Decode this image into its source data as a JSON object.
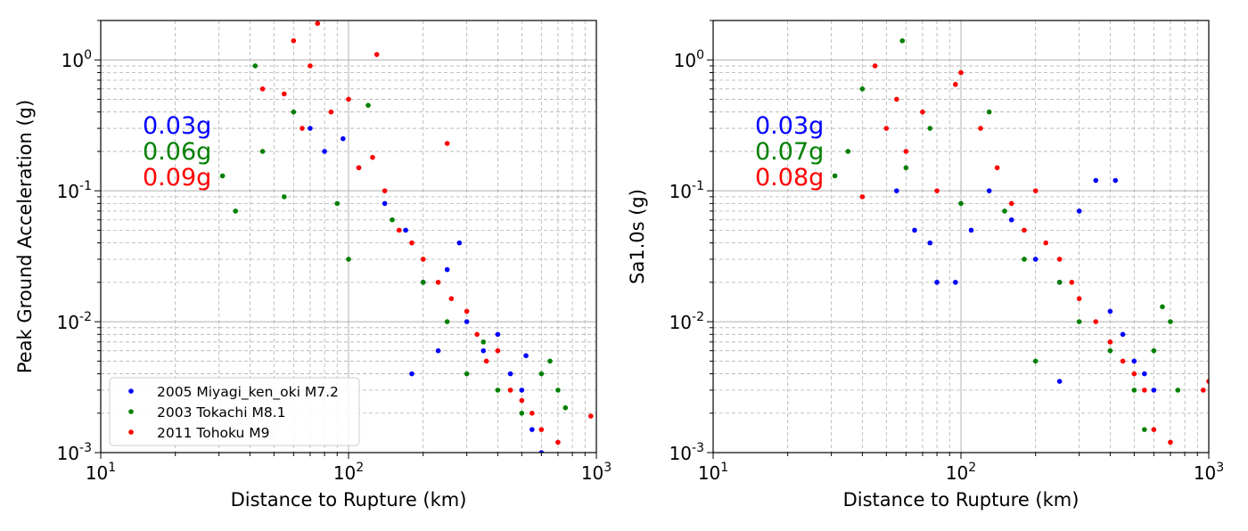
{
  "chart_data": [
    {
      "type": "scatter",
      "xlabel": "Distance to Rupture (km)",
      "ylabel": "Peak Ground Acceleration (g)",
      "xscale": "log",
      "yscale": "log",
      "xlim": [
        10,
        1000
      ],
      "ylim": [
        0.001,
        2
      ],
      "x_ticks": [
        "10^1",
        "10^2",
        "10^3"
      ],
      "y_ticks": [
        "10^-3",
        "10^-2",
        "10^-1",
        "10^0"
      ],
      "grid": true,
      "legend_placement": "lower-left",
      "annotations": [
        {
          "text": "0.03g",
          "color": "#0000ff"
        },
        {
          "text": "0.06g",
          "color": "#008000"
        },
        {
          "text": "0.09g",
          "color": "#ff0000"
        }
      ],
      "series": [
        {
          "name": "2005 Miyagi_ken_oki M7.2",
          "color": "#0000ff",
          "points": [
            [
              70,
              0.3
            ],
            [
              80,
              0.2
            ],
            [
              95,
              0.25
            ],
            [
              110,
              0.15
            ],
            [
              140,
              0.08
            ],
            [
              170,
              0.05
            ],
            [
              200,
              0.02
            ],
            [
              250,
              0.025
            ],
            [
              280,
              0.04
            ],
            [
              300,
              0.01
            ],
            [
              350,
              0.006
            ],
            [
              400,
              0.008
            ],
            [
              450,
              0.004
            ],
            [
              500,
              0.003
            ],
            [
              520,
              0.0055
            ],
            [
              550,
              0.0015
            ],
            [
              600,
              0.001
            ],
            [
              180,
              0.004
            ],
            [
              230,
              0.006
            ]
          ]
        },
        {
          "name": "2003 Tokachi M8.1",
          "color": "#008000",
          "points": [
            [
              31,
              0.13
            ],
            [
              35,
              0.07
            ],
            [
              42,
              0.9
            ],
            [
              45,
              0.2
            ],
            [
              55,
              0.09
            ],
            [
              60,
              0.4
            ],
            [
              90,
              0.08
            ],
            [
              120,
              0.45
            ],
            [
              150,
              0.06
            ],
            [
              200,
              0.02
            ],
            [
              250,
              0.01
            ],
            [
              300,
              0.004
            ],
            [
              350,
              0.007
            ],
            [
              400,
              0.003
            ],
            [
              500,
              0.002
            ],
            [
              600,
              0.004
            ],
            [
              650,
              0.005
            ],
            [
              700,
              0.003
            ],
            [
              750,
              0.0022
            ],
            [
              100,
              0.03
            ]
          ]
        },
        {
          "name": "2011 Tohoku M9",
          "color": "#ff0000",
          "points": [
            [
              45,
              0.6
            ],
            [
              55,
              0.55
            ],
            [
              60,
              1.4
            ],
            [
              70,
              0.9
            ],
            [
              75,
              1.9
            ],
            [
              85,
              0.4
            ],
            [
              100,
              0.5
            ],
            [
              110,
              0.15
            ],
            [
              125,
              0.18
            ],
            [
              140,
              0.1
            ],
            [
              160,
              0.05
            ],
            [
              180,
              0.04
            ],
            [
              200,
              0.03
            ],
            [
              230,
              0.02
            ],
            [
              260,
              0.015
            ],
            [
              300,
              0.012
            ],
            [
              330,
              0.008
            ],
            [
              360,
              0.005
            ],
            [
              400,
              0.006
            ],
            [
              450,
              0.003
            ],
            [
              500,
              0.0025
            ],
            [
              550,
              0.002
            ],
            [
              600,
              0.0015
            ],
            [
              700,
              0.0012
            ],
            [
              950,
              0.0019
            ],
            [
              130,
              1.1
            ],
            [
              65,
              0.3
            ],
            [
              250,
              0.23
            ]
          ]
        }
      ]
    },
    {
      "type": "scatter",
      "xlabel": "Distance to Rupture (km)",
      "ylabel": "Sa1.0s (g)",
      "xscale": "log",
      "yscale": "log",
      "xlim": [
        10,
        1000
      ],
      "ylim": [
        0.001,
        2
      ],
      "x_ticks": [
        "10^1",
        "10^2",
        "10^3"
      ],
      "y_ticks": [
        "10^-3",
        "10^-2",
        "10^-1",
        "10^0"
      ],
      "grid": true,
      "annotations": [
        {
          "text": "0.03g",
          "color": "#0000ff"
        },
        {
          "text": "0.07g",
          "color": "#008000"
        },
        {
          "text": "0.08g",
          "color": "#ff0000"
        }
      ],
      "series": [
        {
          "color": "#0000ff",
          "points": [
            [
              55,
              0.1
            ],
            [
              65,
              0.05
            ],
            [
              75,
              0.04
            ],
            [
              80,
              0.02
            ],
            [
              95,
              0.02
            ],
            [
              110,
              0.05
            ],
            [
              130,
              0.1
            ],
            [
              160,
              0.06
            ],
            [
              200,
              0.03
            ],
            [
              250,
              0.02
            ],
            [
              300,
              0.07
            ],
            [
              350,
              0.12
            ],
            [
              400,
              0.012
            ],
            [
              420,
              0.12
            ],
            [
              450,
              0.008
            ],
            [
              500,
              0.005
            ],
            [
              550,
              0.004
            ],
            [
              600,
              0.003
            ],
            [
              250,
              0.0035
            ]
          ]
        },
        {
          "color": "#008000",
          "points": [
            [
              31,
              0.13
            ],
            [
              35,
              0.2
            ],
            [
              40,
              0.6
            ],
            [
              58,
              1.4
            ],
            [
              60,
              0.15
            ],
            [
              75,
              0.3
            ],
            [
              100,
              0.08
            ],
            [
              130,
              0.4
            ],
            [
              150,
              0.07
            ],
            [
              180,
              0.03
            ],
            [
              200,
              0.005
            ],
            [
              250,
              0.02
            ],
            [
              300,
              0.01
            ],
            [
              400,
              0.006
            ],
            [
              500,
              0.003
            ],
            [
              550,
              0.0015
            ],
            [
              650,
              0.013
            ],
            [
              700,
              0.01
            ],
            [
              750,
              0.003
            ],
            [
              600,
              0.006
            ]
          ]
        },
        {
          "color": "#ff0000",
          "points": [
            [
              40,
              0.09
            ],
            [
              45,
              0.9
            ],
            [
              50,
              0.3
            ],
            [
              55,
              0.5
            ],
            [
              60,
              0.2
            ],
            [
              70,
              0.4
            ],
            [
              80,
              0.1
            ],
            [
              95,
              0.65
            ],
            [
              100,
              0.8
            ],
            [
              120,
              0.3
            ],
            [
              140,
              0.15
            ],
            [
              160,
              0.08
            ],
            [
              180,
              0.05
            ],
            [
              200,
              0.1
            ],
            [
              220,
              0.04
            ],
            [
              250,
              0.03
            ],
            [
              280,
              0.02
            ],
            [
              300,
              0.015
            ],
            [
              350,
              0.01
            ],
            [
              400,
              0.007
            ],
            [
              450,
              0.005
            ],
            [
              500,
              0.004
            ],
            [
              550,
              0.003
            ],
            [
              600,
              0.0015
            ],
            [
              700,
              0.0012
            ],
            [
              950,
              0.003
            ],
            [
              1000,
              0.0035
            ]
          ]
        }
      ]
    }
  ]
}
